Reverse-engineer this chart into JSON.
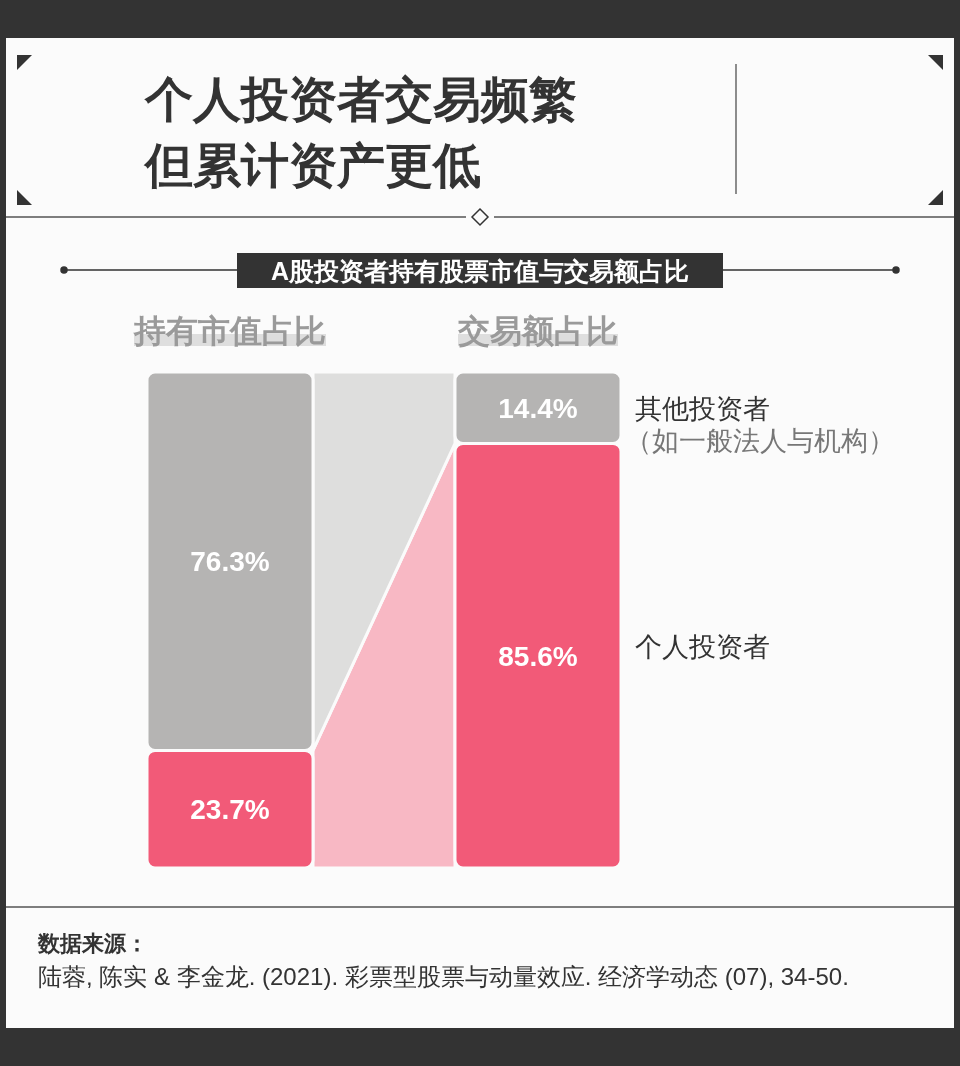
{
  "chart_data": {
    "type": "bar",
    "title": "个人投资者交易频繁但累计资产更低",
    "subtitle": "A股投资者持有股票市值与交易额占比",
    "categories": [
      "持有市值占比",
      "交易额占比"
    ],
    "stacked": true,
    "series": [
      {
        "name": "个人投资者",
        "color": "#f25a78",
        "values": [
          23.7,
          85.6
        ],
        "value_labels": [
          "23.7%",
          "85.6%"
        ]
      },
      {
        "name": "其他投资者（如一般法人与机构）",
        "color": "#b5b4b3",
        "values": [
          76.3,
          14.4
        ],
        "value_labels": [
          "76.3%",
          "14.4%"
        ]
      }
    ],
    "annotations": [
      "数据来源：",
      "陆蓉, 陈实 & 李金龙. (2021). 彩票型股票与动量效应. 经济学动态 (07), 34-50."
    ]
  }
}
